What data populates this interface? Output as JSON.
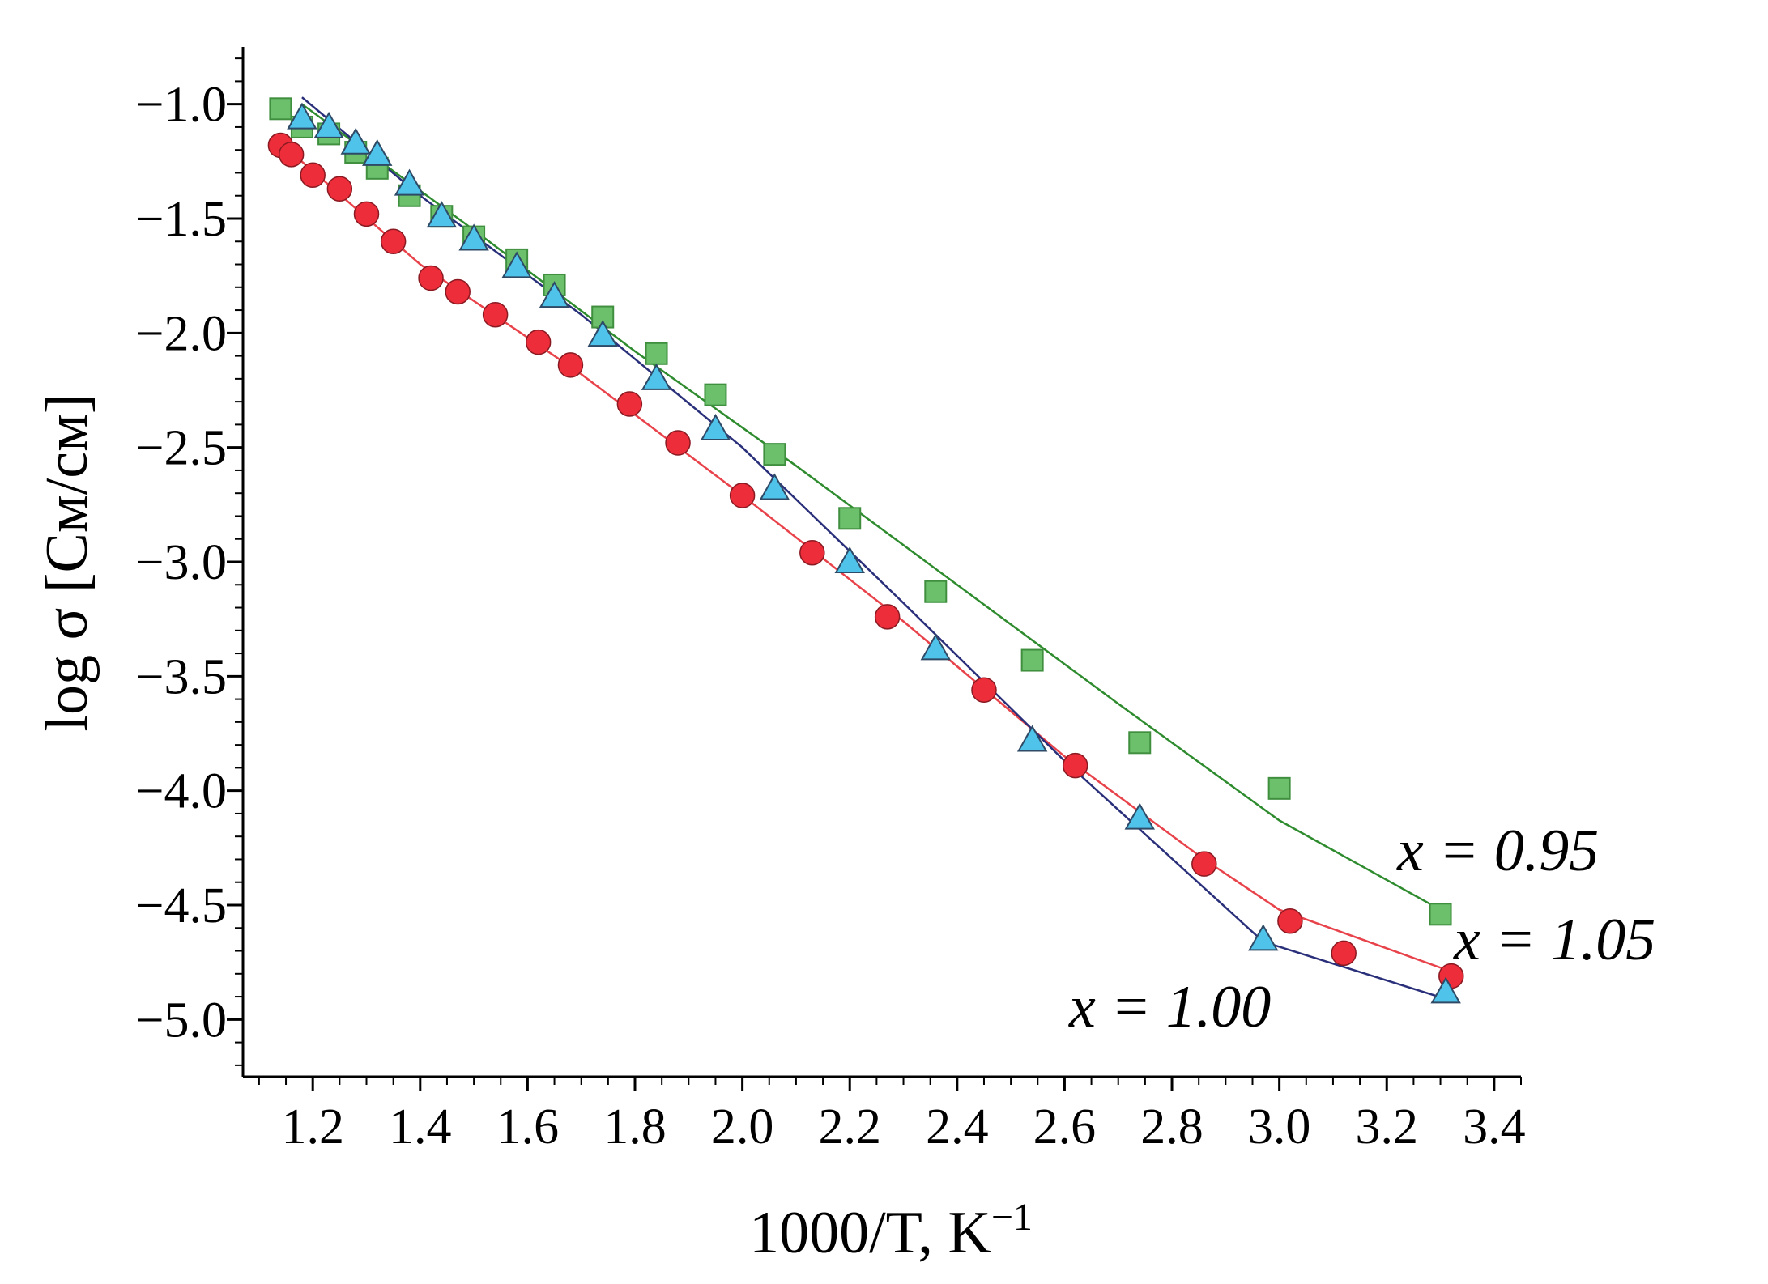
{
  "chart_data": {
    "type": "scatter",
    "title": "",
    "xlabel": "1000/T, K",
    "xlabel_sup": "−1",
    "ylabel": "log σ [См/см]",
    "xlim": [
      1.07,
      3.45
    ],
    "ylim": [
      -5.25,
      -0.75
    ],
    "xticks": [
      {
        "v": 1.2,
        "label": "1.2"
      },
      {
        "v": 1.4,
        "label": "1.4"
      },
      {
        "v": 1.6,
        "label": "1.6"
      },
      {
        "v": 1.8,
        "label": "1.8"
      },
      {
        "v": 2.0,
        "label": "2.0"
      },
      {
        "v": 2.2,
        "label": "2.2"
      },
      {
        "v": 2.4,
        "label": "2.4"
      },
      {
        "v": 2.6,
        "label": "2.6"
      },
      {
        "v": 2.8,
        "label": "2.8"
      },
      {
        "v": 3.0,
        "label": "3.0"
      },
      {
        "v": 3.2,
        "label": "3.2"
      },
      {
        "v": 3.4,
        "label": "3.4"
      }
    ],
    "yticks": [
      {
        "v": -1.0,
        "label": "−1.0"
      },
      {
        "v": -1.5,
        "label": "−1.5"
      },
      {
        "v": -2.0,
        "label": "−2.0"
      },
      {
        "v": -2.5,
        "label": "−2.5"
      },
      {
        "v": -3.0,
        "label": "−3.0"
      },
      {
        "v": -3.5,
        "label": "−3.5"
      },
      {
        "v": -4.0,
        "label": "−4.0"
      },
      {
        "v": -4.5,
        "label": "−4.5"
      },
      {
        "v": -5.0,
        "label": "−5.0"
      }
    ],
    "grid": false,
    "series": [
      {
        "name": "x = 0.95",
        "marker": "square",
        "color": "#6cc06c",
        "stroke": "#3f8f3f",
        "line_color": "#2e8b2e",
        "x": [
          1.14,
          1.18,
          1.23,
          1.28,
          1.32,
          1.38,
          1.44,
          1.5,
          1.58,
          1.65,
          1.74,
          1.84,
          1.95,
          2.06,
          2.2,
          2.36,
          2.54,
          2.74,
          3.0,
          3.3
        ],
        "y": [
          -1.02,
          -1.1,
          -1.13,
          -1.21,
          -1.28,
          -1.4,
          -1.49,
          -1.58,
          -1.68,
          -1.79,
          -1.93,
          -2.09,
          -2.27,
          -2.53,
          -2.81,
          -3.13,
          -3.43,
          -3.79,
          -3.99,
          -4.54
        ],
        "fit_x": [
          1.18,
          1.5,
          1.8,
          2.1,
          2.4,
          2.7,
          3.0,
          3.3
        ],
        "fit_y": [
          -1.0,
          -1.55,
          -2.08,
          -2.58,
          -3.1,
          -3.62,
          -4.13,
          -4.52
        ]
      },
      {
        "name": "x = 1.00",
        "marker": "circle",
        "color": "#ee2d3a",
        "stroke": "#8a1a22",
        "line_color": "#e8434b",
        "x": [
          1.14,
          1.16,
          1.2,
          1.25,
          1.3,
          1.35,
          1.42,
          1.47,
          1.54,
          1.62,
          1.68,
          1.79,
          1.88,
          2.0,
          2.13,
          2.27,
          2.45,
          2.62,
          2.86,
          3.02,
          3.12,
          3.32
        ],
        "y": [
          -1.18,
          -1.22,
          -1.31,
          -1.37,
          -1.48,
          -1.6,
          -1.76,
          -1.82,
          -1.92,
          -2.04,
          -2.14,
          -2.31,
          -2.48,
          -2.71,
          -2.96,
          -3.24,
          -3.56,
          -3.89,
          -4.32,
          -4.57,
          -4.71,
          -4.81
        ],
        "fit_x": [
          1.14,
          1.4,
          1.7,
          2.0,
          2.3,
          2.6,
          2.86,
          3.0,
          3.32
        ],
        "fit_y": [
          -1.17,
          -1.7,
          -2.18,
          -2.71,
          -3.26,
          -3.85,
          -4.3,
          -4.52,
          -4.79
        ]
      },
      {
        "name": "x = 1.05",
        "marker": "triangle",
        "color": "#4fc3ea",
        "stroke": "#2e4a66",
        "line_color": "#2a2f7a",
        "x": [
          1.18,
          1.23,
          1.28,
          1.32,
          1.38,
          1.44,
          1.5,
          1.58,
          1.65,
          1.74,
          1.84,
          1.95,
          2.06,
          2.2,
          2.36,
          2.54,
          2.74,
          2.97,
          3.31
        ],
        "y": [
          -1.06,
          -1.1,
          -1.17,
          -1.22,
          -1.35,
          -1.49,
          -1.59,
          -1.71,
          -1.84,
          -2.01,
          -2.2,
          -2.42,
          -2.68,
          -3.0,
          -3.38,
          -3.78,
          -4.12,
          -4.65,
          -4.88
        ],
        "fit_x": [
          1.18,
          1.4,
          1.7,
          2.0,
          2.3,
          2.6,
          2.97,
          3.31
        ],
        "fit_y": [
          -0.97,
          -1.4,
          -1.92,
          -2.5,
          -3.18,
          -3.87,
          -4.66,
          -4.91
        ]
      }
    ]
  }
}
